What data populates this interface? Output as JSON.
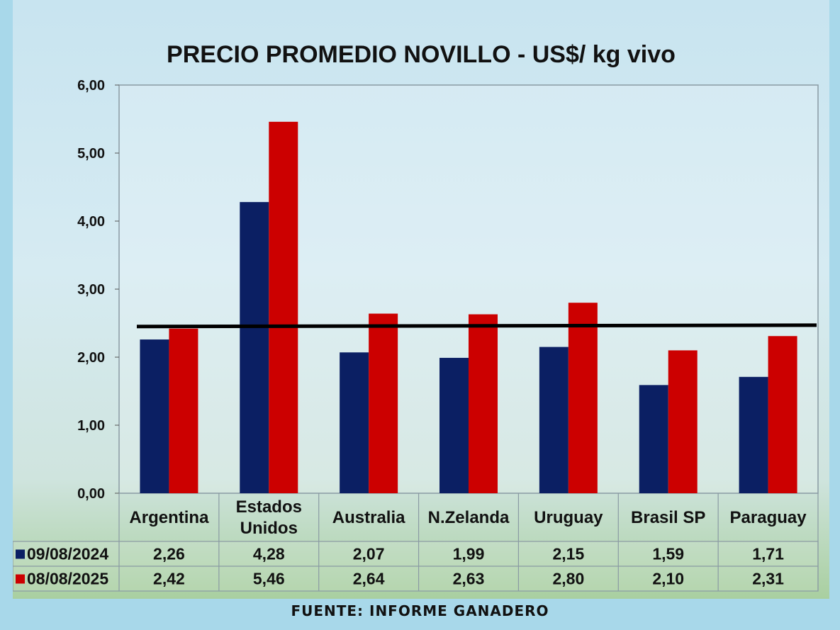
{
  "chart_data": {
    "type": "bar",
    "title": "PRECIO PROMEDIO NOVILLO  - US$/ kg vivo",
    "categories": [
      "Argentina",
      "Estados Unidos",
      "Australia",
      "N.Zelanda",
      "Uruguay",
      "Brasil SP",
      "Paraguay"
    ],
    "category_lines": [
      [
        "Argentina"
      ],
      [
        "Estados",
        "Unidos"
      ],
      [
        "Australia"
      ],
      [
        "N.Zelanda"
      ],
      [
        "Uruguay"
      ],
      [
        "Brasil SP"
      ],
      [
        "Paraguay"
      ]
    ],
    "series": [
      {
        "name": "09/08/2024",
        "color": "#0b1f63",
        "values": [
          2.26,
          4.28,
          2.07,
          1.99,
          2.15,
          1.59,
          1.71
        ],
        "labels": [
          "2,26",
          "4,28",
          "2,07",
          "1,99",
          "2,15",
          "1,59",
          "1,71"
        ]
      },
      {
        "name": "08/08/2025",
        "color": "#cc0000",
        "values": [
          2.42,
          5.46,
          2.64,
          2.63,
          2.8,
          2.1,
          2.31
        ],
        "labels": [
          "2,42",
          "5,46",
          "2,64",
          "2,63",
          "2,80",
          "2,10",
          "2,31"
        ]
      }
    ],
    "average_line": {
      "color": "#000000",
      "start": 2.45,
      "end": 2.47
    },
    "ylim": [
      0,
      6
    ],
    "yticks": [
      0,
      1,
      2,
      3,
      4,
      5,
      6
    ],
    "ytick_labels": [
      "0,00",
      "1,00",
      "2,00",
      "3,00",
      "4,00",
      "5,00",
      "6,00"
    ],
    "xlabel": "",
    "ylabel": "",
    "legend": "data-table",
    "grid": false
  },
  "footer": {
    "source": "FUENTE: INFORME GANADERO"
  }
}
